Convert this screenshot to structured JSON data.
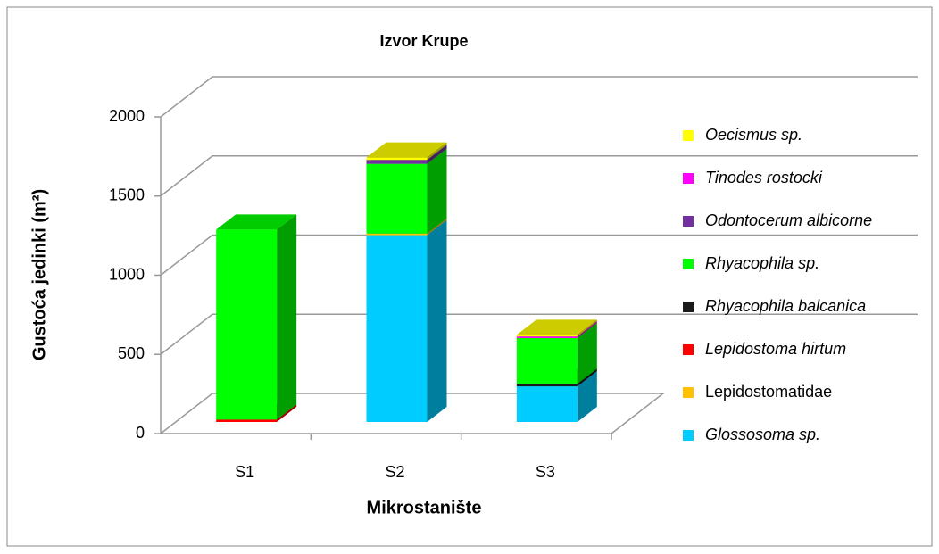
{
  "chart_data": {
    "type": "bar3d_stacked",
    "title": "Izvor Krupe",
    "x_label": "Mikrostanište",
    "y_label": "Gustoća jedinki (m²)",
    "categories": [
      "S1",
      "S2",
      "S3"
    ],
    "ylim": [
      0,
      2000
    ],
    "yticks": [
      0,
      500,
      1000,
      1500,
      2000
    ],
    "grid": true,
    "legend": "right",
    "series": [
      {
        "name": "Glossosoma sp.",
        "color": "#00ccff",
        "italic": true,
        "values": [
          0,
          1180,
          225
        ]
      },
      {
        "name": "Lepidostomatidae",
        "color": "#ffc000",
        "italic": false,
        "values": [
          0,
          10,
          0
        ]
      },
      {
        "name": "Lepidostoma hirtum",
        "color": "#ff0000",
        "italic": true,
        "values": [
          15,
          0,
          0
        ]
      },
      {
        "name": "Rhyacophila balcanica",
        "color": "#1a1a1a",
        "italic": true,
        "values": [
          0,
          0,
          15
        ]
      },
      {
        "name": "Rhyacophila sp.",
        "color": "#00ff00",
        "italic": true,
        "values": [
          1200,
          440,
          290
        ]
      },
      {
        "name": "Odontocerum albicorne",
        "color": "#7030a0",
        "italic": true,
        "values": [
          0,
          25,
          0
        ]
      },
      {
        "name": "Tinodes rostocki",
        "color": "#ff00ff",
        "italic": true,
        "values": [
          0,
          0,
          10
        ]
      },
      {
        "name": "Oecismus sp.",
        "color": "#ffff00",
        "italic": true,
        "values": [
          0,
          15,
          10
        ]
      }
    ]
  }
}
